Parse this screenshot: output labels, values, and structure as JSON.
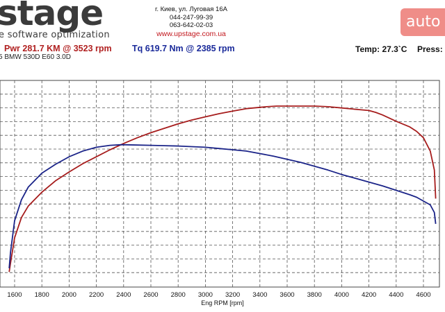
{
  "header": {
    "logo": "stage",
    "tagline": "e software optimization",
    "address": "г. Киев, ул. Луговая 16А",
    "phone1": "044-247-99-39",
    "phone2": "063-642-02-03",
    "website": "www.upstage.com.ua",
    "watermark": "auto"
  },
  "summary": {
    "power": "Pwr  281.7 KM @ 3523 rpm",
    "torque": "Tq 619.7 Nm @ 2385 rpm",
    "temp": "Temp: 27.3`C",
    "press": "Press:",
    "car": "5 BMW 530D E60 3.0D"
  },
  "colors": {
    "power": "#a61c1c",
    "torque": "#1a2388",
    "grid": "#555555"
  },
  "chart_data": {
    "type": "line",
    "title": "",
    "xlabel": "Eng RPM [rpm]",
    "ylabel": "",
    "xlim": [
      1540,
      4700
    ],
    "x_ticks": [
      1600,
      1800,
      2000,
      2200,
      2400,
      2600,
      2800,
      3000,
      3200,
      3400,
      3600,
      3800,
      4000,
      4200,
      4400,
      4600
    ],
    "grid": true,
    "series": [
      {
        "name": "Pwr",
        "color": "#a61c1c",
        "x": [
          1560,
          1570,
          1600,
          1650,
          1700,
          1800,
          1900,
          2000,
          2100,
          2200,
          2300,
          2400,
          2500,
          2600,
          2700,
          2800,
          2900,
          3000,
          3100,
          3200,
          3300,
          3400,
          3450,
          3523,
          3600,
          3700,
          3800,
          3900,
          4000,
          4100,
          4200,
          4250,
          4300,
          4400,
          4500,
          4550,
          4600,
          4650,
          4680,
          4690
        ],
        "values": [
          4,
          18,
          58,
          90,
          108,
          130,
          148,
          162,
          175,
          186,
          197,
          207,
          216,
          224,
          231,
          238,
          244,
          249,
          254,
          258,
          262,
          264,
          265,
          266,
          266,
          266,
          266,
          265,
          263,
          261,
          259,
          256,
          252,
          242,
          233,
          226,
          216,
          195,
          165,
          120
        ]
      },
      {
        "name": "Tq",
        "color": "#1a2388",
        "x": [
          1560,
          1570,
          1600,
          1650,
          1700,
          1800,
          1900,
          2000,
          2100,
          2200,
          2300,
          2385,
          2500,
          2600,
          2700,
          2800,
          2900,
          3000,
          3100,
          3200,
          3300,
          3400,
          3500,
          3600,
          3700,
          3800,
          3900,
          4000,
          4100,
          4200,
          4300,
          4400,
          4500,
          4550,
          4600,
          4650,
          4680,
          4690
        ],
        "values": [
          10,
          35,
          85,
          118,
          138,
          160,
          174,
          186,
          195,
          201,
          204,
          205,
          204.5,
          204,
          203.5,
          203,
          202,
          201,
          199,
          197,
          195,
          191,
          187,
          182,
          177,
          171,
          165,
          158,
          152,
          146,
          140,
          133,
          126,
          122,
          116,
          110,
          98,
          80
        ]
      }
    ]
  }
}
